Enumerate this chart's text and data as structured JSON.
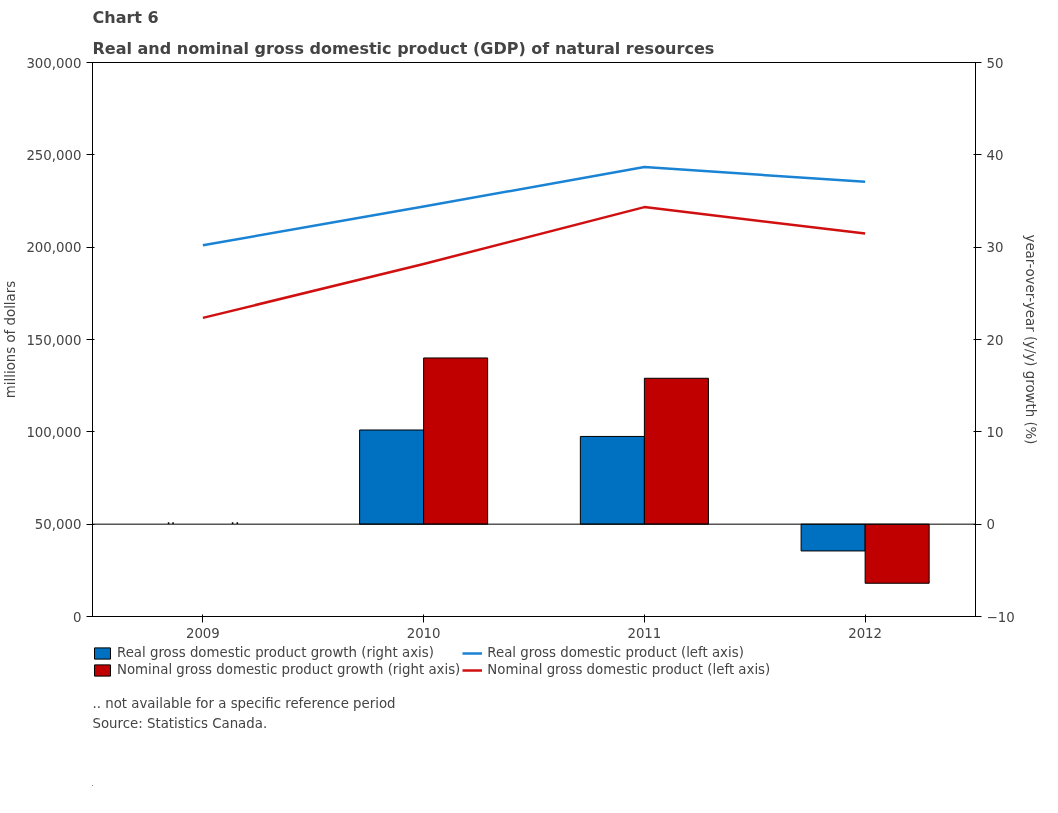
{
  "chart_data": {
    "type": "bar",
    "title": "Chart 6",
    "subtitle": "Real and nominal gross domestic product (GDP) of natural resources",
    "ylabel": "millions of dollars",
    "y2label": "year-over-year (y/y) growth (%)",
    "categories": [
      "2009",
      "2010",
      "2011",
      "2012"
    ],
    "series": [
      {
        "name": "Real gross domestic product growth (right axis)",
        "color": "#0070c0",
        "axis": "y2",
        "values": [
          null,
          10.2,
          9.5,
          -2.9
        ],
        "value_labels": [
          "..",
          null,
          null,
          null
        ]
      },
      {
        "name": "Nominal gross domestic product growth (right axis)",
        "color": "#c00000",
        "axis": "y2",
        "values": [
          null,
          18.0,
          15.8,
          -6.4
        ],
        "value_labels": [
          "..",
          null,
          null,
          null
        ]
      },
      {
        "type": "line",
        "name": "Real gross domestic product (left axis)",
        "color": "#1a83d4",
        "values": [
          201000,
          222000,
          243400,
          235400
        ]
      },
      {
        "type": "line",
        "name": "Nominal gross domestic product (left axis)",
        "color": "#d01010",
        "values": [
          161700,
          190900,
          221700,
          207400
        ]
      }
    ],
    "ylim": [
      0,
      300000
    ],
    "yticks": [
      {
        "value": 0,
        "label": "0"
      },
      {
        "value": 50000,
        "label": "50,000"
      },
      {
        "value": 100000,
        "label": "100,000"
      },
      {
        "value": 150000,
        "label": "150,000"
      },
      {
        "value": 200000,
        "label": "200,000"
      },
      {
        "value": 250000,
        "label": "250,000"
      },
      {
        "value": 300000,
        "label": "300,000"
      }
    ],
    "y2lim": [
      -10,
      50
    ],
    "y2ticks": [
      -10,
      0,
      10,
      20,
      30,
      40,
      50
    ],
    "ref_lines": [
      {
        "axis": "y2",
        "value": 0,
        "color": "#000000"
      }
    ],
    "grid": false,
    "legend": "bottom",
    "annotations": [
      ".. not available for a specific reference period",
      "Source: Statistics Canada."
    ]
  }
}
